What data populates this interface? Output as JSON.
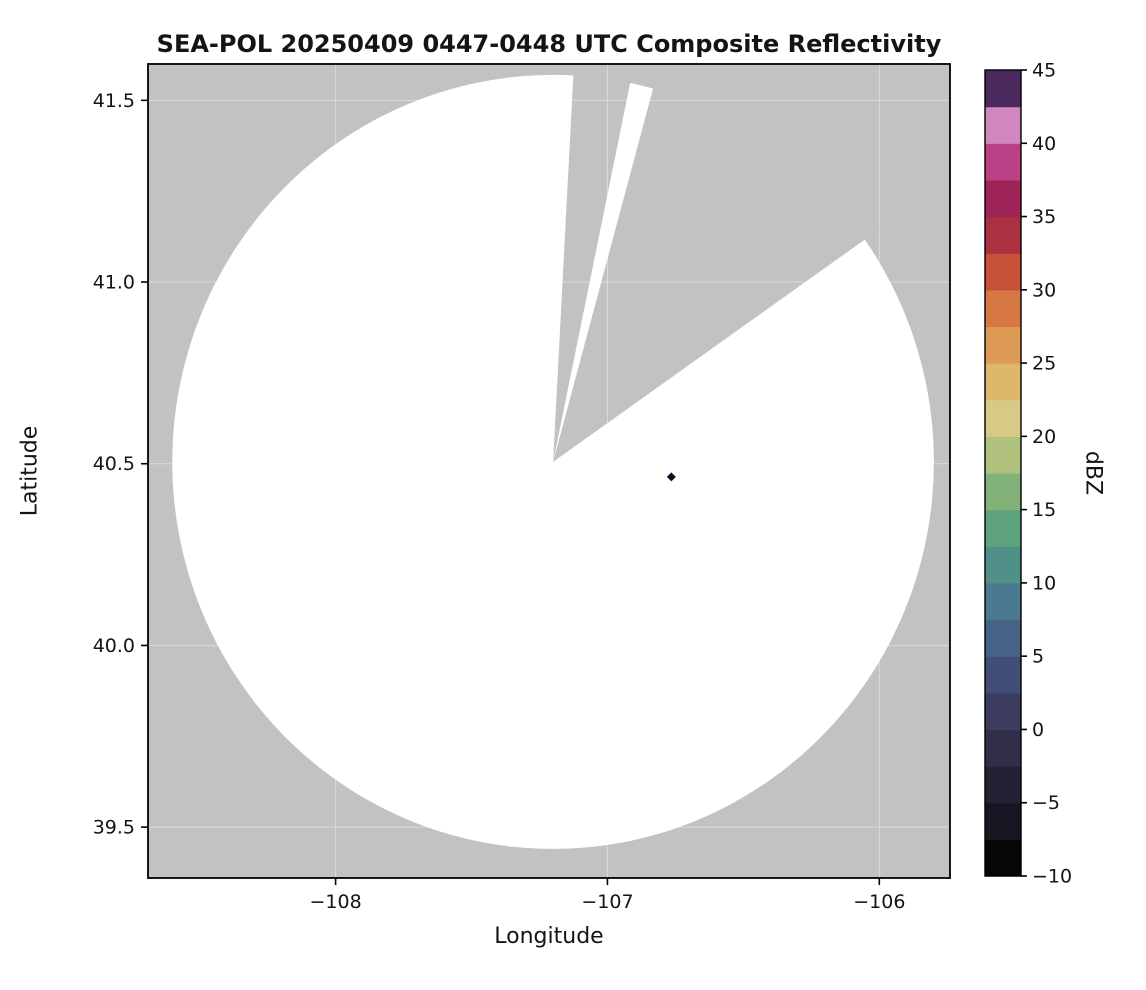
{
  "figure": {
    "title": "SEA-POL 20250409 0447-0448 UTC Composite Reflectivity",
    "xlabel": "Longitude",
    "ylabel": "Latitude",
    "colorbar_label": "dBZ"
  },
  "chart_data": {
    "type": "heatmap",
    "title": "SEA-POL 20250409 0447-0448 UTC Composite Reflectivity",
    "xlabel": "Longitude",
    "ylabel": "Latitude",
    "xlim": [
      -108.69,
      -105.74
    ],
    "ylim": [
      39.36,
      41.6
    ],
    "grid": true,
    "masked_color": "#c2c2c2",
    "coverage_fill": "#ffffff",
    "x_ticks": [
      {
        "value": -108,
        "label": "−108"
      },
      {
        "value": -107,
        "label": "−107"
      },
      {
        "value": -106,
        "label": "−106"
      }
    ],
    "y_ticks": [
      {
        "value": 39.5,
        "label": "39.5"
      },
      {
        "value": 40.0,
        "label": "40.0"
      },
      {
        "value": 40.5,
        "label": "40.5"
      },
      {
        "value": 41.0,
        "label": "41.0"
      },
      {
        "value": 41.5,
        "label": "41.5"
      }
    ],
    "radar": {
      "center_lon": -107.2,
      "center_lat": 40.505,
      "range_radius_deg_lat": 1.065,
      "missing_sectors_azimuth_deg": [
        [
          3,
          11.5
        ],
        [
          15,
          54.5
        ]
      ]
    },
    "echoes": [
      {
        "lon": -106.765,
        "lat": 40.464,
        "value_dbz": 45,
        "color": "#160d26",
        "marker": "diamond"
      }
    ],
    "colorbar": {
      "label": "dBZ",
      "min": -10,
      "max": 45,
      "bin_size_dbz": 2.5,
      "ticks": [
        {
          "value": 45,
          "label": "45"
        },
        {
          "value": 40,
          "label": "40"
        },
        {
          "value": 35,
          "label": "35"
        },
        {
          "value": 30,
          "label": "30"
        },
        {
          "value": 25,
          "label": "25"
        },
        {
          "value": 20,
          "label": "20"
        },
        {
          "value": 15,
          "label": "15"
        },
        {
          "value": 10,
          "label": "10"
        },
        {
          "value": 5,
          "label": "5"
        },
        {
          "value": 0,
          "label": "0"
        },
        {
          "value": -5,
          "label": "−5"
        },
        {
          "value": -10,
          "label": "−10"
        }
      ],
      "bin_colors_bottom_to_top": [
        "#060606",
        "#171522",
        "#252135",
        "#322e49",
        "#3c3c5f",
        "#434e77",
        "#476287",
        "#4b7990",
        "#509089",
        "#5fa37d",
        "#82b278",
        "#afc17c",
        "#d6ca85",
        "#ddb86b",
        "#dd9a55",
        "#d77844",
        "#c65038",
        "#ab3040",
        "#9e2457",
        "#bb4086",
        "#d186bd",
        "#4a2a5e"
      ]
    }
  }
}
